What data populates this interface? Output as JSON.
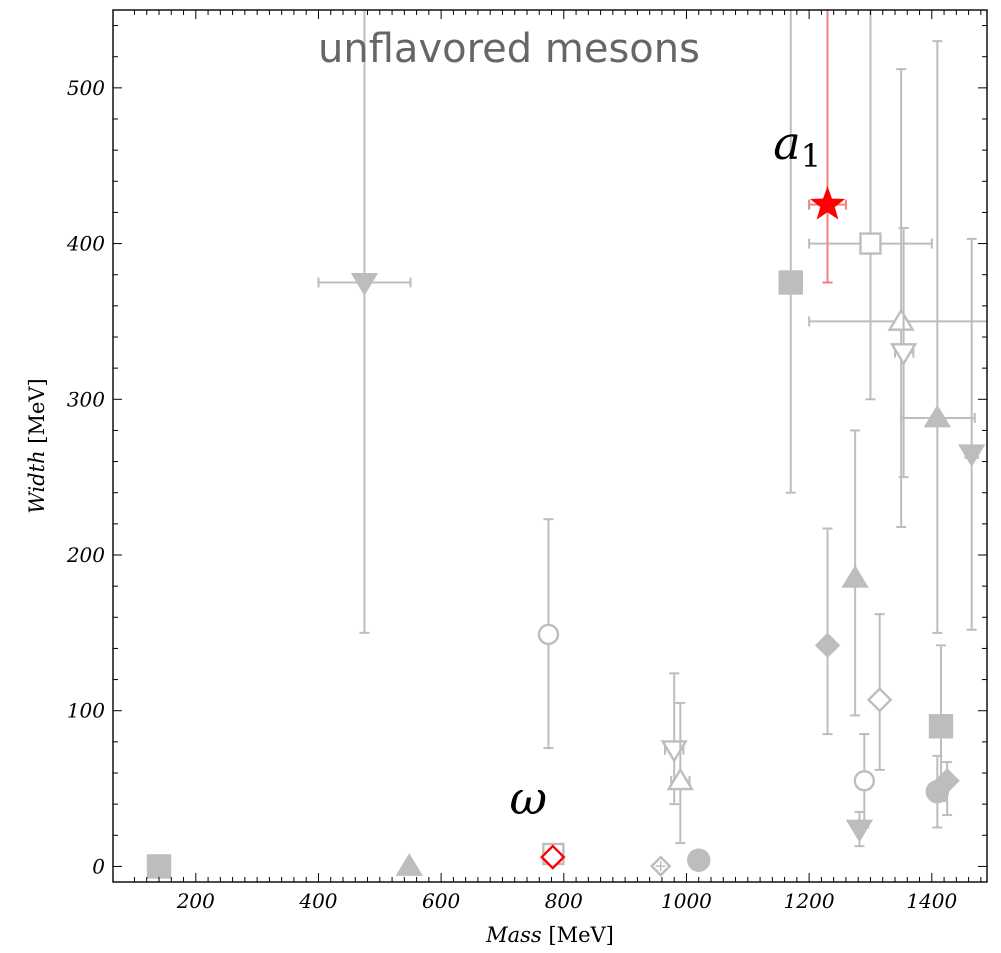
{
  "chart_data": {
    "type": "scatter",
    "title": "unflavored mesons",
    "xlabel": "Mass",
    "xlabel_unit": "[MeV]",
    "ylabel": "Width",
    "ylabel_unit": "[MeV]",
    "xlim": [
      65,
      1490
    ],
    "ylim": [
      -10,
      550
    ],
    "xticks": [
      200,
      400,
      600,
      800,
      1000,
      1200,
      1400
    ],
    "yticks": [
      0,
      100,
      200,
      300,
      400,
      500
    ],
    "grid": false,
    "colors": {
      "gray": "#bdbdbd",
      "highlight": "#ff0000",
      "highlight_bar": "#f08080"
    },
    "points": [
      {
        "x": 140,
        "y": 0,
        "marker": "square-filled"
      },
      {
        "x": 475,
        "y": 375,
        "marker": "tri-down-filled",
        "xerr": [
          400,
          550
        ],
        "yerr": [
          150,
          600
        ]
      },
      {
        "x": 548,
        "y": 0,
        "marker": "tri-up-filled"
      },
      {
        "x": 775,
        "y": 149,
        "marker": "circle-open",
        "yerr": [
          76,
          223
        ]
      },
      {
        "x": 783,
        "y": 8,
        "marker": "square-open"
      },
      {
        "x": 958,
        "y": 0.2,
        "marker": "diamond-open-cross"
      },
      {
        "x": 980,
        "y": 75,
        "marker": "tri-down-open",
        "xerr": [
          965,
          995
        ],
        "yerr": [
          40,
          124
        ]
      },
      {
        "x": 990,
        "y": 55,
        "marker": "tri-up-open",
        "xerr": [
          975,
          1005
        ],
        "yerr": [
          15,
          105
        ]
      },
      {
        "x": 1020,
        "y": 4,
        "marker": "circle-filled"
      },
      {
        "x": 1170,
        "y": 375,
        "marker": "square-filled",
        "yerr": [
          240,
          600
        ]
      },
      {
        "x": 1230,
        "y": 142,
        "marker": "diamond-filled",
        "yerr": [
          85,
          217
        ]
      },
      {
        "x": 1275,
        "y": 185,
        "marker": "tri-up-filled",
        "yerr": [
          97,
          280
        ]
      },
      {
        "x": 1282,
        "y": 24,
        "marker": "tri-down-filled",
        "yerr": [
          13,
          35
        ]
      },
      {
        "x": 1290,
        "y": 55,
        "marker": "circle-open",
        "yerr": [
          25,
          85
        ]
      },
      {
        "x": 1300,
        "y": 400,
        "marker": "square-open",
        "xerr": [
          1200,
          1400
        ],
        "yerr": [
          300,
          600
        ]
      },
      {
        "x": 1315,
        "y": 107,
        "marker": "diamond-open",
        "yerr": [
          62,
          162
        ]
      },
      {
        "x": 1350,
        "y": 350,
        "marker": "tri-up-open",
        "xerr": [
          1200,
          1500
        ],
        "yerr": [
          218,
          512
        ]
      },
      {
        "x": 1354,
        "y": 330,
        "marker": "tri-down-open",
        "xerr": [
          1340,
          1370
        ],
        "yerr": [
          250,
          410
        ]
      },
      {
        "x": 1409,
        "y": 288,
        "marker": "tri-up-filled",
        "xerr": [
          1350,
          1470
        ],
        "yerr": [
          150,
          530
        ]
      },
      {
        "x": 1409,
        "y": 48,
        "marker": "circle-filled",
        "yerr": [
          25,
          71
        ]
      },
      {
        "x": 1415,
        "y": 90,
        "marker": "square-filled",
        "yerr": [
          42,
          142
        ]
      },
      {
        "x": 1425,
        "y": 55,
        "marker": "diamond-filled",
        "yerr": [
          33,
          67
        ]
      },
      {
        "x": 1465,
        "y": 265,
        "marker": "tri-down-filled",
        "xerr": [
          1455,
          1475
        ],
        "yerr": [
          152,
          403
        ]
      },
      {
        "x": 782,
        "y": 6,
        "marker": "diamond-open",
        "highlight": true
      },
      {
        "x": 1230,
        "y": 425,
        "marker": "star",
        "highlight": true,
        "xerr": [
          1200,
          1260
        ],
        "yerr": [
          375,
          600
        ]
      }
    ],
    "annotations": [
      {
        "text": "ω",
        "x": 742,
        "y": 40
      },
      {
        "text": "a",
        "sub": "1",
        "x": 1210,
        "y": 462
      }
    ]
  }
}
